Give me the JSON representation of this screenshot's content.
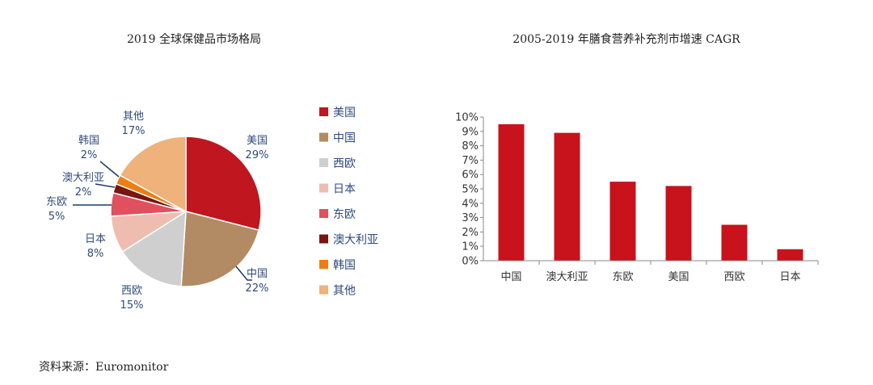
{
  "source": "资料来源：Euromonitor",
  "colors": {
    "美国": "#c0161f",
    "中国": "#b28b64",
    "西欧": "#cfcfcf",
    "日本": "#efbdb0",
    "东欧": "#e0505f",
    "澳大利亚": "#7a1512",
    "韩国": "#ee7d13",
    "其他": "#efb27a",
    "bar": "#c8121c",
    "label_text": "#2e4a7d"
  },
  "chart_data": [
    {
      "type": "pie",
      "title": "2019 全球保健品市场格局",
      "slices": [
        {
          "name": "美国",
          "value": 29,
          "label": "29%"
        },
        {
          "name": "中国",
          "value": 22,
          "label": "22%"
        },
        {
          "name": "西欧",
          "value": 15,
          "label": "15%"
        },
        {
          "name": "日本",
          "value": 8,
          "label": "8%"
        },
        {
          "name": "东欧",
          "value": 5,
          "label": "5%"
        },
        {
          "name": "澳大利亚",
          "value": 2,
          "label": "2%"
        },
        {
          "name": "韩国",
          "value": 2,
          "label": "2%"
        },
        {
          "name": "其他",
          "value": 17,
          "label": "17%"
        }
      ],
      "legend": [
        "美国",
        "中国",
        "西欧",
        "日本",
        "东欧",
        "澳大利亚",
        "韩国",
        "其他"
      ],
      "legend_position": "right"
    },
    {
      "type": "bar",
      "title": "2005-2019 年膳食营养补充剂市增速 CAGR",
      "categories": [
        "中国",
        "澳大利亚",
        "东欧",
        "美国",
        "西欧",
        "日本"
      ],
      "values": [
        9.5,
        8.9,
        5.5,
        5.2,
        2.5,
        0.8
      ],
      "unit": "%",
      "ylim": [
        0,
        10
      ],
      "yticks": [
        "0%",
        "1%",
        "2%",
        "3%",
        "4%",
        "5%",
        "6%",
        "7%",
        "8%",
        "9%",
        "10%"
      ],
      "grid": false
    }
  ]
}
